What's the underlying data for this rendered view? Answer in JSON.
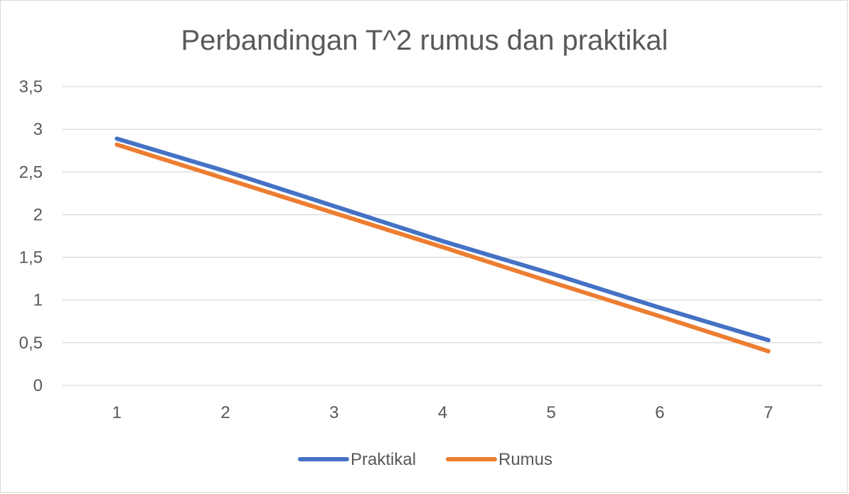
{
  "chart_data": {
    "type": "line",
    "title": "Perbandingan T^2 rumus dan praktikal",
    "xlabel": "",
    "ylabel": "",
    "categories": [
      "1",
      "2",
      "3",
      "4",
      "5",
      "6",
      "7"
    ],
    "ylim": [
      0,
      3.5
    ],
    "yticks": [
      0,
      0.5,
      1,
      1.5,
      2,
      2.5,
      3,
      3.5
    ],
    "ytick_labels": [
      "0",
      "0,5",
      "1",
      "1,5",
      "2",
      "2,5",
      "3",
      "3,5"
    ],
    "grid": true,
    "legend_position": "bottom",
    "series": [
      {
        "name": "Praktikal",
        "color": "#4472C4",
        "values": [
          2.89,
          2.51,
          2.1,
          1.69,
          1.31,
          0.91,
          0.53
        ]
      },
      {
        "name": "Rumus",
        "color": "#ED7D31",
        "values": [
          2.82,
          2.42,
          2.02,
          1.62,
          1.21,
          0.81,
          0.4
        ]
      }
    ]
  }
}
